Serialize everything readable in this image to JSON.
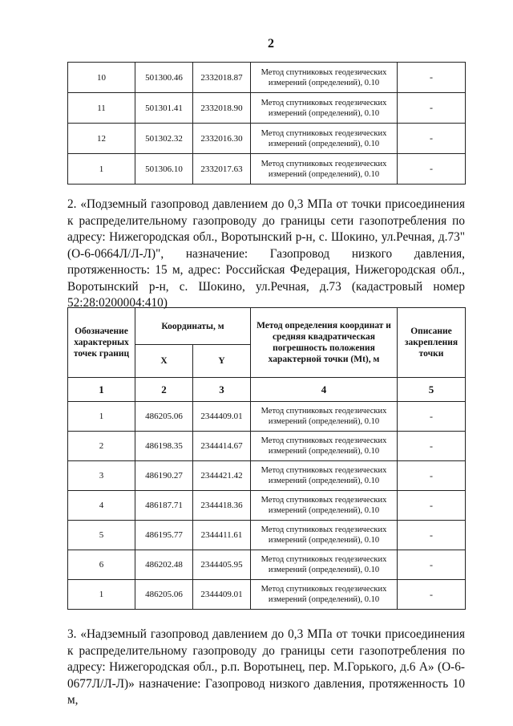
{
  "page_number": "2",
  "table1": {
    "rows": [
      [
        "10",
        "501300.46",
        "2332018.87",
        "Метод спутниковых геодезических измерений (определений), 0.10",
        "-"
      ],
      [
        "11",
        "501301.41",
        "2332018.90",
        "Метод спутниковых геодезических измерений (определений), 0.10",
        "-"
      ],
      [
        "12",
        "501302.32",
        "2332016.30",
        "Метод спутниковых геодезических измерений (определений), 0.10",
        "-"
      ],
      [
        "1",
        "501306.10",
        "2332017.63",
        "Метод спутниковых геодезических измерений (определений), 0.10",
        "-"
      ]
    ]
  },
  "paragraph2": "2. «Подземный газопровод давлением до 0,3 МПа от точки присоединения к распределительному газопроводу до границы сети газопотребления по адресу: Нижегородская обл., Воротынский р-н, с. Шокино, ул.Речная, д.73\" (О-6-0664Л/Л-Л)\", назначение: Газопровод низкого давления, протяженность: 15 м, адрес: Российская Федерация, Нижегородская обл., Воротынский р-н, с. Шокино, ул.Речная, д.73 (кадастровый номер 52:28:0200004:410)",
  "table2": {
    "headers": {
      "designation": "Обозначение характерных точек границ",
      "coords": "Координаты, м",
      "x": "X",
      "y": "Y",
      "method": "Метод определения координат и средняя квадратическая погрешность положения характерной точки (Mt), м",
      "description": "Описание закрепления точки"
    },
    "index_row": [
      "1",
      "2",
      "3",
      "4",
      "5"
    ],
    "rows": [
      [
        "1",
        "486205.06",
        "2344409.01",
        "Метод спутниковых геодезических измерений (определений), 0.10",
        "-"
      ],
      [
        "2",
        "486198.35",
        "2344414.67",
        "Метод спутниковых геодезических измерений (определений), 0.10",
        "-"
      ],
      [
        "3",
        "486190.27",
        "2344421.42",
        "Метод спутниковых геодезических измерений (определений), 0.10",
        "-"
      ],
      [
        "4",
        "486187.71",
        "2344418.36",
        "Метод спутниковых геодезических измерений (определений), 0.10",
        "-"
      ],
      [
        "5",
        "486195.77",
        "2344411.61",
        "Метод спутниковых геодезических измерений (определений), 0.10",
        "-"
      ],
      [
        "6",
        "486202.48",
        "2344405.95",
        "Метод спутниковых геодезических измерений (определений), 0.10",
        "-"
      ],
      [
        "1",
        "486205.06",
        "2344409.01",
        "Метод спутниковых геодезических измерений (определений), 0.10",
        "-"
      ]
    ]
  },
  "paragraph3": "3. «Надземный газопровод давлением до 0,3 МПа от точки присоединения к распределительному газопроводу до границы сети газопотребления по адресу: Нижегородская обл., р.п. Воротынец, пер. М.Горького, д.6 А» (О-6-0677Л/Л-Л)» назначение: Газопровод низкого давления, протяженность 10 м,"
}
